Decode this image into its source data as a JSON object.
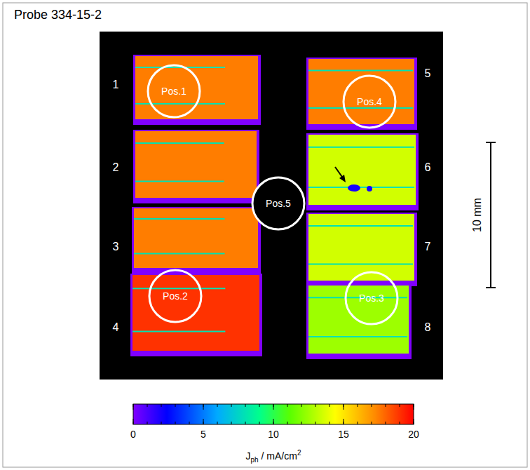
{
  "chart_data": {
    "type": "heatmap",
    "title": "Probe 334-15-2",
    "cells": [
      {
        "label": "1",
        "value": 17.5
      },
      {
        "label": "2",
        "value": 17.5
      },
      {
        "label": "3",
        "value": 17.5
      },
      {
        "label": "4",
        "value": 19
      },
      {
        "label": "5",
        "value": 17.5
      },
      {
        "label": "6",
        "value": 13.5
      },
      {
        "label": "7",
        "value": 13.5
      },
      {
        "label": "8",
        "value": 12.5
      }
    ],
    "positions": [
      "Pos.1",
      "Pos.2",
      "Pos.3",
      "Pos.4",
      "Pos.5"
    ],
    "scale_bar": {
      "label": "10 mm"
    },
    "colorbar": {
      "range": [
        0,
        20
      ],
      "ticks": [
        0,
        5,
        10,
        15,
        20
      ],
      "label": {
        "symbol": "J",
        "subscript": "ph",
        "unit": " / mA/cm",
        "superscript": "2"
      }
    }
  }
}
